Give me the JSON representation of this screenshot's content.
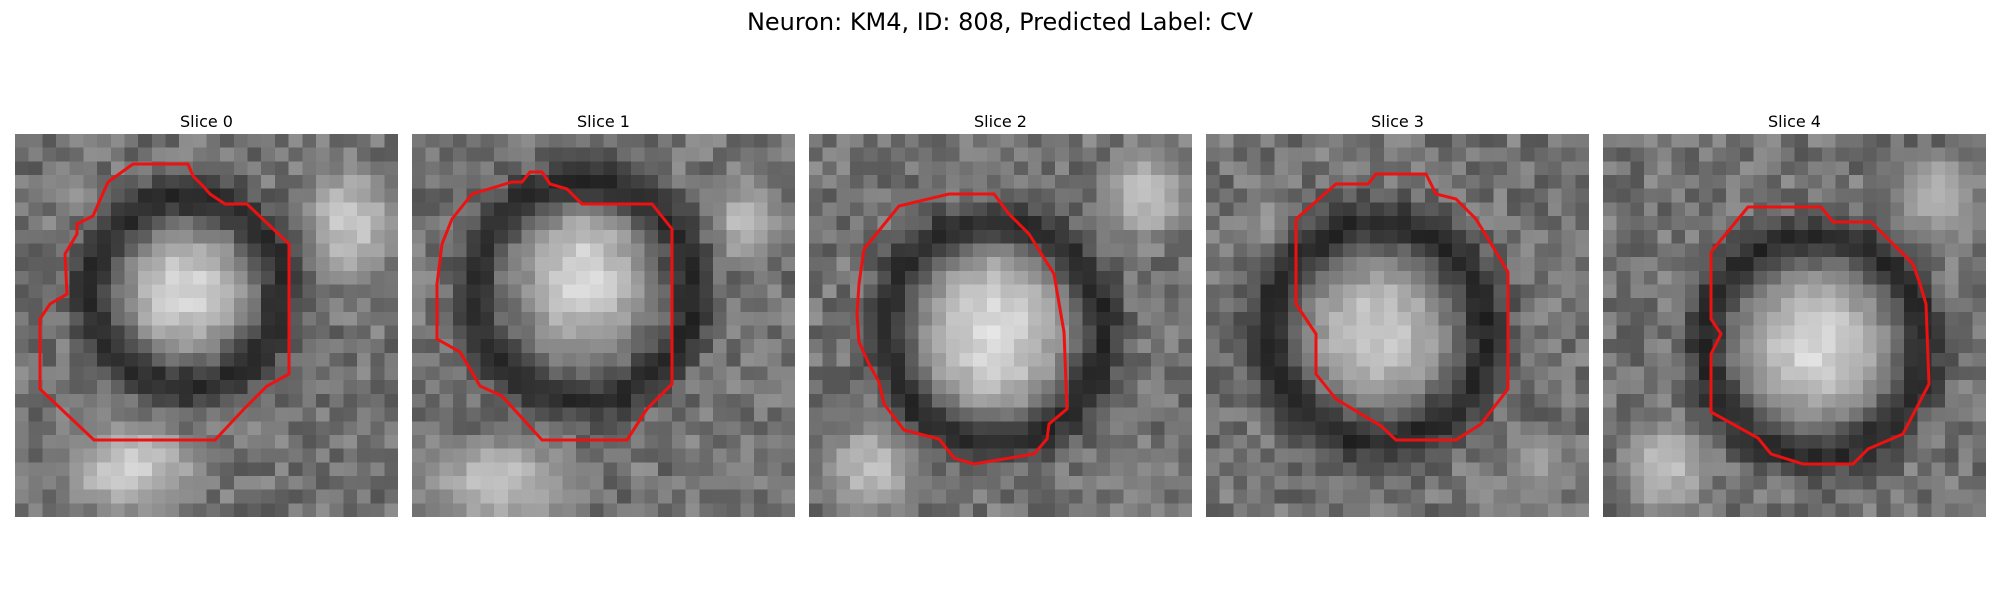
{
  "figure": {
    "title": "Neuron: KM4, ID: 808, Predicted Label: CV"
  },
  "slices": [
    {
      "title": "Slice 0"
    },
    {
      "title": "Slice 1"
    },
    {
      "title": "Slice 2"
    },
    {
      "title": "Slice 3"
    },
    {
      "title": "Slice 4"
    }
  ],
  "style": {
    "contour_color": "#ee1111",
    "colormap": "gray"
  }
}
